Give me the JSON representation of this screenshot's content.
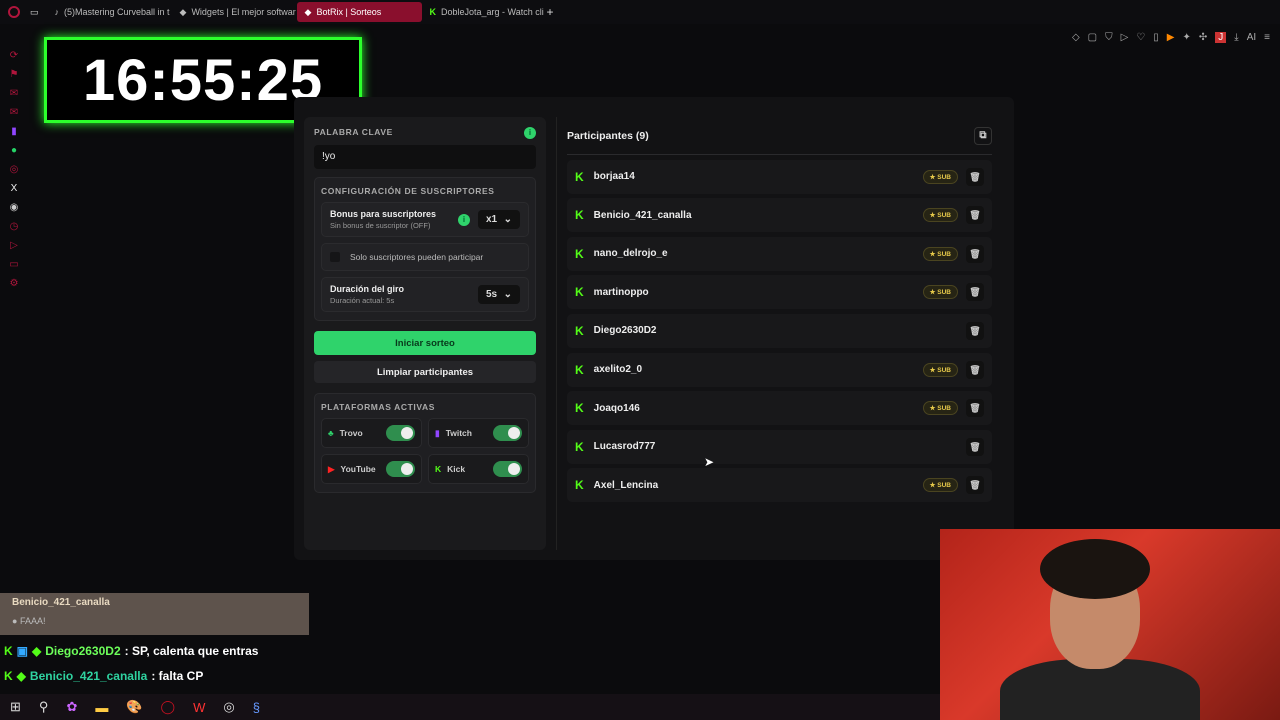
{
  "browser": {
    "tabs": [
      {
        "label": "(5)Mastering Curveball in t",
        "icon": "tiktok-icon"
      },
      {
        "label": "Widgets | El mejor softwar",
        "icon": "botrix-icon"
      },
      {
        "label": "BotRix | Sorteos",
        "icon": "botrix-icon",
        "active": true
      },
      {
        "label": "DobleJota_arg - Watch cli",
        "icon": "kick-icon"
      }
    ],
    "new_tab": "+",
    "profile": "J",
    "ai": "AI"
  },
  "clock": "16:55:25",
  "giveaway": {
    "keyword_label": "PALABRA CLAVE",
    "keyword_value": "!yo",
    "subs_config_label": "CONFIGURACIÓN DE SUSCRIPTORES",
    "bonus_title": "Bonus para suscriptores",
    "bonus_sub": "Sin bonus de suscriptor (OFF)",
    "bonus_value": "x1",
    "subs_only": "Solo suscriptores pueden participar",
    "subs_only_checked": false,
    "duration_title": "Duración del giro",
    "duration_sub": "Duración actual: 5s",
    "duration_value": "5s",
    "start_button": "Iniciar sorteo",
    "clear_button": "Limpiar participantes",
    "platforms_label": "PLATAFORMAS ACTIVAS",
    "platforms": [
      {
        "name": "Trovo",
        "on": true
      },
      {
        "name": "Twitch",
        "on": true
      },
      {
        "name": "YouTube",
        "on": true
      },
      {
        "name": "Kick",
        "on": true
      }
    ],
    "accent": "#2fd36b"
  },
  "participants": {
    "title": "Participantes (9)",
    "sub_badge": "SUB",
    "items": [
      {
        "name": "borjaa14",
        "sub": true
      },
      {
        "name": "Benicio_421_canalla",
        "sub": true
      },
      {
        "name": "nano_delrojo_e",
        "sub": true
      },
      {
        "name": "martinoppo",
        "sub": true
      },
      {
        "name": "Diego2630D2",
        "sub": false
      },
      {
        "name": "axelito2_0",
        "sub": true
      },
      {
        "name": "Joaqo146",
        "sub": true
      },
      {
        "name": "Lucasrod777",
        "sub": false
      },
      {
        "name": "Axel_Lencina",
        "sub": true
      }
    ]
  },
  "alert": {
    "user": "Benicio_421_canalla",
    "message": "FAAA!"
  },
  "chat": [
    {
      "user": "Diego2630D2",
      "text": ": SP, calenta que entras",
      "color": "#6dff5a"
    },
    {
      "user": "Benicio_421_canalla",
      "text": ": falta CP",
      "color": "#2fd3a0"
    }
  ]
}
